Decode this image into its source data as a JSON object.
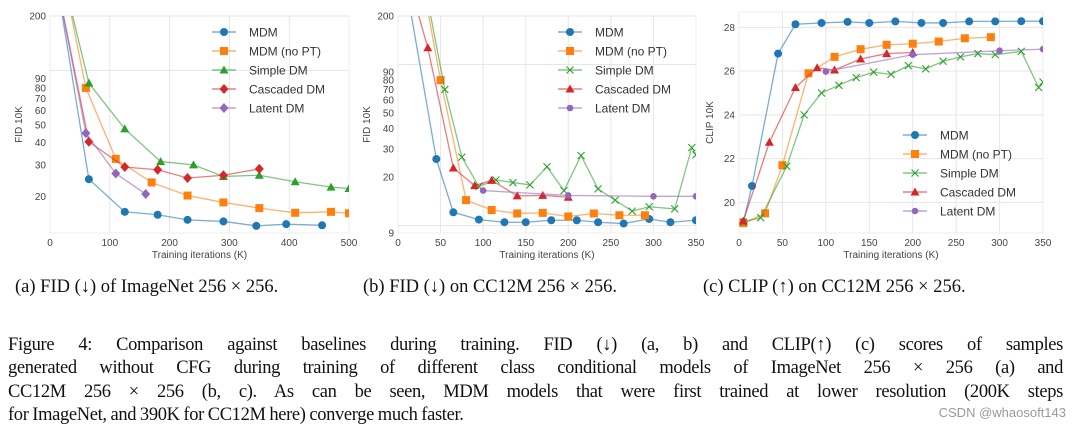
{
  "colors": {
    "MDM": "#1f77b4",
    "MDM (no PT)": "#ff7f0e",
    "Simple DM": "#2ca02c",
    "Cascaded DM": "#d62728",
    "Latent DM": "#9467bd"
  },
  "chart_data": [
    {
      "type": "line",
      "xlabel": "Training iterations (K)",
      "ylabel": "FID 10K",
      "yscale": "log",
      "xlim": [
        0,
        500
      ],
      "ylim": [
        12.6,
        200
      ],
      "xticks": [
        0,
        100,
        200,
        300,
        400,
        500
      ],
      "yticks": [
        20,
        30,
        40,
        50,
        60,
        70,
        80,
        90,
        200
      ],
      "ygrid": [
        100,
        200
      ],
      "xgrid": [
        100,
        200,
        300,
        400
      ],
      "legend": "top-right",
      "series": [
        {
          "name": "MDM",
          "marker": "circle",
          "x": [
            12,
            65,
            125,
            180,
            230,
            290,
            345,
            395,
            455
          ],
          "y": [
            300,
            25,
            16.5,
            15.9,
            14.9,
            14.6,
            13.8,
            14.1,
            13.9
          ]
        },
        {
          "name": "MDM (no PT)",
          "marker": "square",
          "x": [
            25,
            60,
            110,
            170,
            230,
            290,
            350,
            410,
            470,
            500
          ],
          "y": [
            300,
            80,
            32.4,
            24,
            20.3,
            18.6,
            17.3,
            16.3,
            16.5,
            16.2
          ]
        },
        {
          "name": "Simple DM",
          "marker": "triangle",
          "x": [
            25,
            65,
            125,
            185,
            240,
            290,
            350,
            410,
            470,
            500
          ],
          "y": [
            300,
            85,
            47.5,
            31.3,
            30,
            25.9,
            26.3,
            24.2,
            22.6,
            22.2
          ]
        },
        {
          "name": "Cascaded DM",
          "marker": "diamond",
          "x": [
            12,
            65,
            125,
            180,
            230,
            290,
            350
          ],
          "y": [
            300,
            40.3,
            29.2,
            28.2,
            25.4,
            26.3,
            28.5
          ]
        },
        {
          "name": "Latent DM",
          "marker": "diamond",
          "x": [
            12,
            60,
            110,
            160
          ],
          "y": [
            300,
            45,
            26.9,
            20.7
          ]
        }
      ]
    },
    {
      "type": "line",
      "xlabel": "Training iterations (K)",
      "ylabel": "FID 10K",
      "yscale": "log",
      "xlim": [
        0,
        350
      ],
      "ylim": [
        9,
        200
      ],
      "xticks": [
        0,
        50,
        100,
        150,
        200,
        250,
        300,
        350
      ],
      "yticks": [
        9,
        20,
        30,
        40,
        50,
        60,
        70,
        80,
        90,
        200
      ],
      "ygrid": [
        10,
        100,
        200
      ],
      "xgrid": [
        50,
        100,
        150,
        200,
        250,
        300
      ],
      "legend": "top-right",
      "series": [
        {
          "name": "MDM",
          "marker": "circle",
          "x": [
            10,
            45,
            65,
            95,
            125,
            150,
            180,
            210,
            235,
            265,
            295,
            320,
            350
          ],
          "y": [
            300,
            25.9,
            12.1,
            10.9,
            10.5,
            10.5,
            10.8,
            10.8,
            10.5,
            10.3,
            11,
            10.5,
            10.8
          ]
        },
        {
          "name": "MDM (no PT)",
          "marker": "square",
          "x": [
            30,
            50,
            80,
            110,
            140,
            170,
            200,
            230,
            260,
            290
          ],
          "y": [
            300,
            80,
            14.4,
            12.5,
            11.9,
            12,
            11.4,
            11.9,
            11.6,
            11.6
          ]
        },
        {
          "name": "Simple DM",
          "marker": "x",
          "x": [
            32,
            55,
            75,
            95,
            115,
            135,
            155,
            175,
            195,
            215,
            235,
            255,
            275,
            295,
            325,
            345,
            350
          ],
          "y": [
            300,
            70,
            26.6,
            17.5,
            19.2,
            18.5,
            17.9,
            23.2,
            16.5,
            27.2,
            16.9,
            14.4,
            12.3,
            13.1,
            12.7,
            30.5,
            27.5
          ]
        },
        {
          "name": "Cascaded DM",
          "marker": "triangle",
          "x": [
            15,
            35,
            65,
            90,
            110,
            140,
            170,
            200
          ],
          "y": [
            300,
            127,
            22.8,
            17.7,
            19.1,
            15.3,
            15.4,
            15
          ]
        },
        {
          "name": "Latent DM",
          "marker": "smallcircle",
          "x": [
            100,
            200,
            300,
            350
          ],
          "y": [
            16.5,
            15.4,
            15.2,
            15.2
          ]
        }
      ]
    },
    {
      "type": "line",
      "xlabel": "Training iterations (K)",
      "ylabel": "CLIP 10K",
      "yscale": "linear",
      "xlim": [
        0,
        350
      ],
      "ylim": [
        18.6,
        28.7
      ],
      "xticks": [
        0,
        50,
        100,
        150,
        200,
        250,
        300,
        350
      ],
      "yticks": [
        20,
        22,
        24,
        26,
        28
      ],
      "ygrid": [
        20,
        22,
        24,
        26,
        28
      ],
      "xgrid": [
        50,
        100,
        150,
        200,
        250,
        300
      ],
      "legend": "bottom-right",
      "series": [
        {
          "name": "MDM",
          "marker": "circle",
          "x": [
            5,
            15,
            45,
            65,
            95,
            125,
            150,
            180,
            210,
            235,
            265,
            295,
            325,
            350
          ],
          "y": [
            19.1,
            20.75,
            26.8,
            28.14,
            28.2,
            28.25,
            28.2,
            28.27,
            28.2,
            28.2,
            28.27,
            28.27,
            28.28,
            28.28
          ]
        },
        {
          "name": "MDM (no PT)",
          "marker": "square",
          "x": [
            5,
            30,
            50,
            80,
            110,
            140,
            170,
            200,
            230,
            260,
            290
          ],
          "y": [
            19.05,
            19.5,
            21.7,
            25.9,
            26.65,
            27,
            27.2,
            27.25,
            27.35,
            27.5,
            27.55
          ]
        },
        {
          "name": "Simple DM",
          "marker": "x",
          "x": [
            5,
            25,
            55,
            75,
            95,
            115,
            135,
            155,
            175,
            195,
            215,
            235,
            255,
            275,
            295,
            325,
            345,
            350
          ],
          "y": [
            19.1,
            19.3,
            21.65,
            24,
            25,
            25.35,
            25.7,
            25.95,
            25.85,
            26.25,
            26.1,
            26.45,
            26.65,
            26.8,
            26.75,
            26.9,
            25.25,
            25.5
          ]
        },
        {
          "name": "Cascaded DM",
          "marker": "triangle",
          "x": [
            5,
            35,
            65,
            90,
            110,
            140,
            170,
            200
          ],
          "y": [
            19.15,
            22.75,
            25.25,
            26.15,
            26.05,
            26.55,
            26.8,
            26.85
          ]
        },
        {
          "name": "Latent DM",
          "marker": "smallcircle",
          "x": [
            100,
            200,
            300,
            350
          ],
          "y": [
            25.98,
            26.75,
            26.93,
            27
          ]
        }
      ]
    }
  ],
  "subcaptions": [
    "(a) FID (↓) of ImageNet 256 × 256.",
    "(b) FID (↓) on CC12M 256 × 256.",
    "(c) CLIP (↑) on CC12M 256 × 256."
  ],
  "caption": [
    "Figure 4:  Comparison against baselines during training.  FID (↓) (a, b) and CLIP(↑) (c) scores of samples",
    "generated without CFG during training of different class conditional models of ImageNet 256 × 256 (a) and",
    "CC12M 256 × 256 (b, c).  As can be seen, MDM models that were first trained at lower resolution (200K steps",
    "for ImageNet, and 390K for CC12M here) converge much faster."
  ],
  "watermark": "CSDN @whaosoft143"
}
